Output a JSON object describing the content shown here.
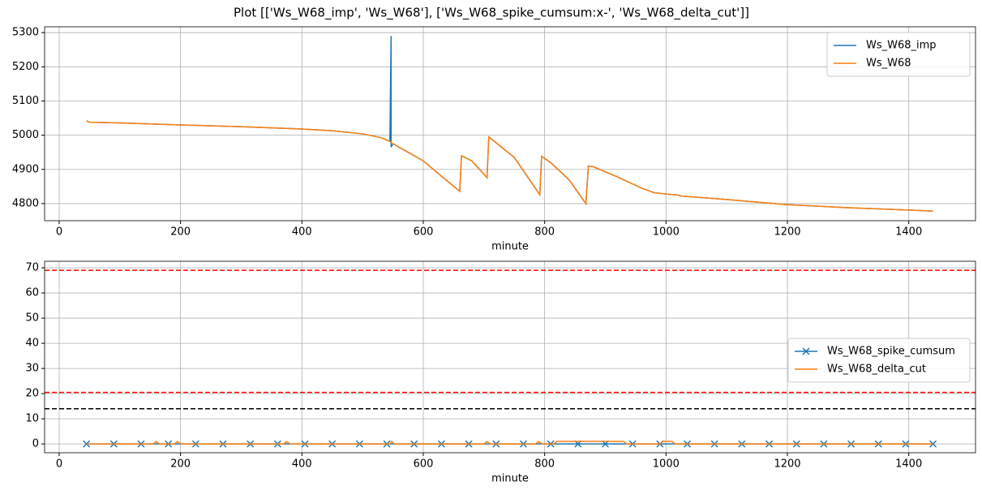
{
  "title": "Plot [['Ws_W68_imp', 'Ws_W68'], ['Ws_W68_spike_cumsum:x-', 'Ws_W68_delta_cut']]",
  "chart_data": [
    {
      "type": "line",
      "xlabel": "minute",
      "legend": "upper right",
      "grid": true,
      "xlim": [
        -24,
        1510
      ],
      "xticks": [
        0,
        200,
        400,
        600,
        800,
        1000,
        1200,
        1400
      ],
      "ylim": [
        4750,
        5317
      ],
      "yticks": [
        4800,
        4900,
        5000,
        5100,
        5200,
        5300
      ],
      "series": [
        {
          "name": "Ws_W68_imp",
          "color": "#1f77b4",
          "x": [
            45,
            50,
            100,
            200,
            300,
            400,
            450,
            500,
            530,
            545,
            547,
            547,
            550,
            600,
            630,
            660,
            663,
            680,
            705,
            708,
            750,
            792,
            795,
            810,
            840,
            868,
            872,
            880,
            920,
            960,
            980,
            1000,
            1020,
            1025,
            1100,
            1200,
            1300,
            1400,
            1440
          ],
          "values": [
            5042,
            5038,
            5036,
            5030,
            5025,
            5018,
            5013,
            5004,
            4993,
            4982,
            5290,
            4965,
            4975,
            4925,
            4880,
            4836,
            4940,
            4925,
            4876,
            4995,
            4935,
            4826,
            4938,
            4920,
            4870,
            4800,
            4910,
            4908,
            4878,
            4845,
            4832,
            4828,
            4825,
            4822,
            4812,
            4797,
            4788,
            4781,
            4778
          ]
        },
        {
          "name": "Ws_W68",
          "color": "#ff7f0e",
          "x": [
            45,
            50,
            100,
            200,
            300,
            400,
            450,
            500,
            530,
            545,
            550,
            600,
            630,
            660,
            663,
            680,
            705,
            708,
            750,
            792,
            795,
            810,
            840,
            868,
            872,
            880,
            920,
            960,
            980,
            1000,
            1020,
            1025,
            1100,
            1200,
            1300,
            1400,
            1440
          ],
          "values": [
            5042,
            5038,
            5036,
            5030,
            5025,
            5018,
            5013,
            5004,
            4993,
            4982,
            4975,
            4925,
            4880,
            4836,
            4940,
            4925,
            4876,
            4995,
            4935,
            4826,
            4938,
            4920,
            4870,
            4800,
            4910,
            4908,
            4878,
            4845,
            4832,
            4828,
            4825,
            4822,
            4812,
            4797,
            4788,
            4781,
            4778
          ]
        }
      ]
    },
    {
      "type": "line",
      "xlabel": "minute",
      "legend": "center right",
      "grid": true,
      "xlim": [
        -24,
        1510
      ],
      "xticks": [
        0,
        200,
        400,
        600,
        800,
        1000,
        1200,
        1400
      ],
      "ylim": [
        -3.5,
        72.6
      ],
      "yticks": [
        0,
        10,
        20,
        30,
        40,
        50,
        60,
        70
      ],
      "hlines": [
        {
          "value": 69,
          "color": "#ff0000"
        },
        {
          "value": 20.5,
          "color": "#ff0000"
        },
        {
          "value": 14,
          "color": "#000000"
        }
      ],
      "series": [
        {
          "name": "Ws_W68_spike_cumsum",
          "color": "#1f77b4",
          "marker": "x",
          "x": [
            45,
            90,
            135,
            180,
            225,
            270,
            315,
            360,
            405,
            450,
            495,
            540,
            585,
            630,
            675,
            720,
            765,
            810,
            855,
            900,
            945,
            990,
            1035,
            1080,
            1125,
            1170,
            1215,
            1260,
            1305,
            1350,
            1395,
            1440
          ],
          "values": [
            0,
            0,
            0,
            0,
            0,
            0,
            0,
            0,
            0,
            0,
            0,
            0,
            0,
            0,
            0,
            0,
            0,
            0,
            0,
            0,
            0,
            0,
            0,
            0,
            0,
            0,
            0,
            0,
            0,
            0,
            0,
            0
          ]
        },
        {
          "name": "Ws_W68_delta_cut",
          "color": "#ff7f0e",
          "x": [
            45,
            155,
            160,
            165,
            190,
            195,
            200,
            370,
            375,
            380,
            545,
            548,
            552,
            700,
            705,
            710,
            785,
            790,
            795,
            815,
            820,
            850,
            880,
            930,
            935,
            990,
            995,
            1010,
            1015,
            1440
          ],
          "values": [
            0,
            0,
            1,
            0,
            0,
            1,
            0,
            0,
            1,
            0,
            0,
            1,
            0,
            0,
            1,
            0,
            0,
            1,
            0,
            0,
            1,
            1,
            1,
            1,
            0,
            0,
            1,
            1,
            0,
            0
          ]
        }
      ]
    }
  ]
}
